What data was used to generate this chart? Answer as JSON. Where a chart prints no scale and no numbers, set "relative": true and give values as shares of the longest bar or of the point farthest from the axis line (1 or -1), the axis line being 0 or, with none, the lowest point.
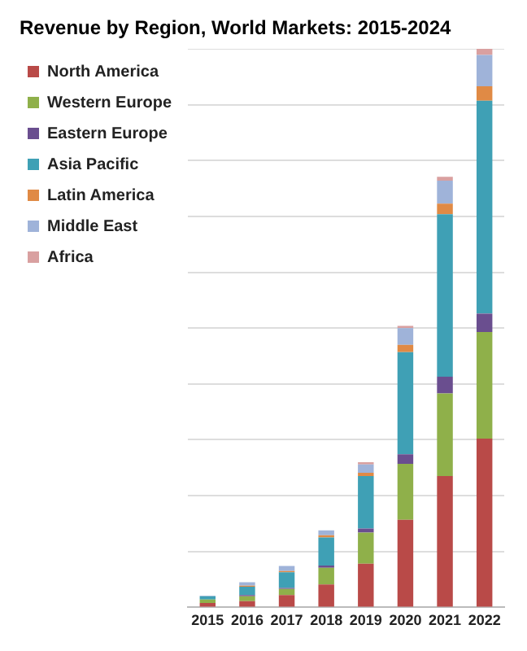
{
  "chart_data": {
    "type": "bar",
    "title": "Revenue by Region, World Markets: 2015-2024",
    "categories": [
      "2015",
      "2016",
      "2017",
      "2018",
      "2019",
      "2020",
      "2021",
      "2022"
    ],
    "stacked": true,
    "relative": true,
    "grid": "y",
    "legend": "top left",
    "series": [
      {
        "name": "North America",
        "color": "#b94a48",
        "values": [
          0.008,
          0.011,
          0.022,
          0.041,
          0.078,
          0.157,
          0.235,
          0.302
        ]
      },
      {
        "name": "Western Europe",
        "color": "#8fb04a",
        "values": [
          0.006,
          0.009,
          0.011,
          0.03,
          0.056,
          0.1,
          0.148,
          0.191
        ]
      },
      {
        "name": "Eastern Europe",
        "color": "#6a4e8f",
        "values": [
          null,
          0.002,
          0.002,
          0.004,
          0.007,
          0.017,
          0.03,
          0.033
        ]
      },
      {
        "name": "Asia Pacific",
        "color": "#3fa0b5",
        "values": [
          0.006,
          0.015,
          0.028,
          0.05,
          0.094,
          0.183,
          0.291,
          0.381
        ]
      },
      {
        "name": "Latin America",
        "color": "#e08a45",
        "values": [
          null,
          0.002,
          0.002,
          0.004,
          0.006,
          0.013,
          0.019,
          0.026
        ]
      },
      {
        "name": "Middle East",
        "color": "#9fb3d9",
        "values": [
          0.001,
          0.006,
          0.009,
          0.009,
          0.015,
          0.03,
          0.041,
          0.056
        ]
      },
      {
        "name": "Africa",
        "color": "#d9a0a0",
        "values": [
          0,
          0,
          0,
          0,
          0.004,
          0.004,
          0.007,
          0.011
        ]
      }
    ]
  }
}
